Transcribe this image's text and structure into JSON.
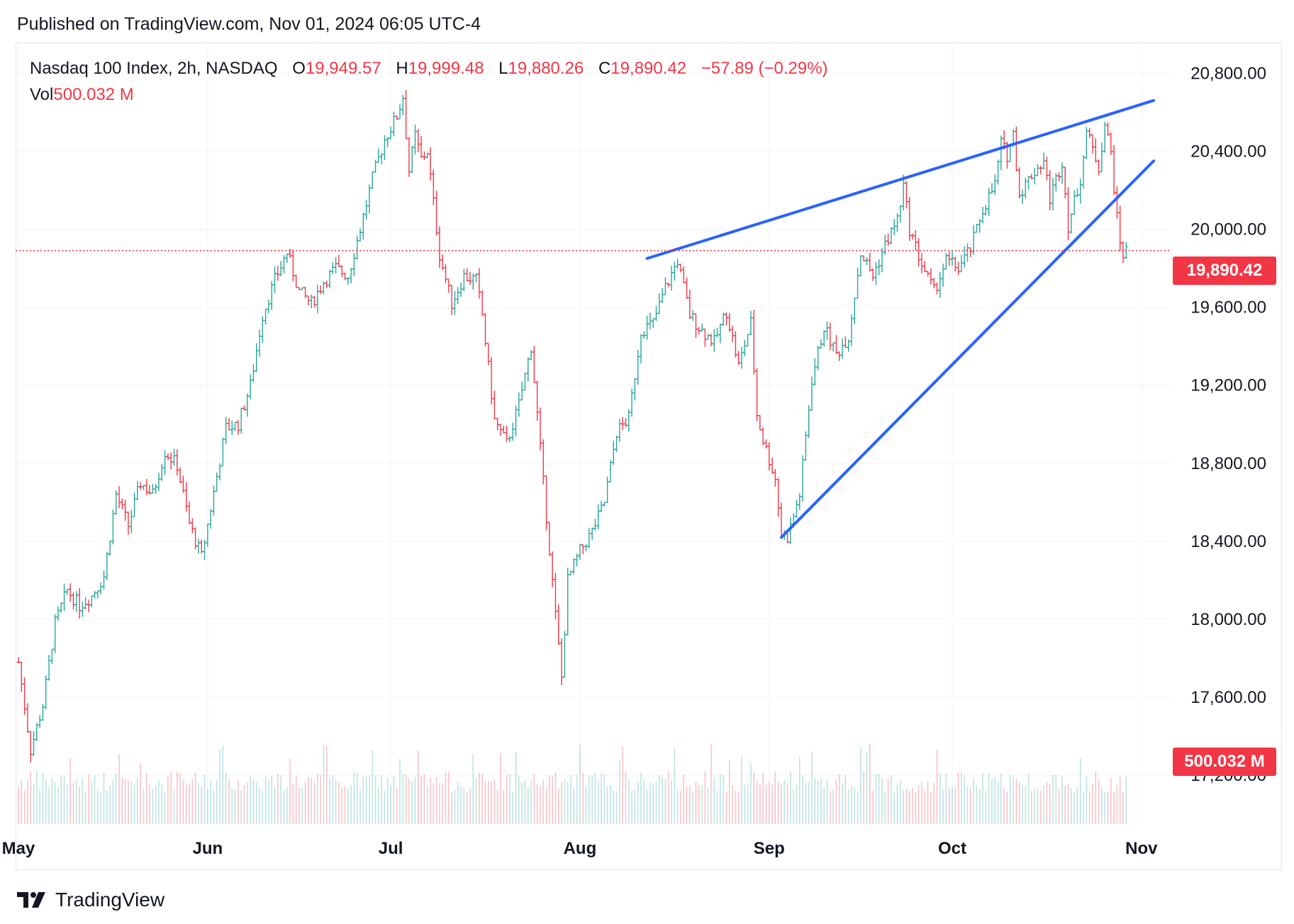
{
  "header": {
    "published": "Published on TradingView.com, Nov 01, 2024 06:05 UTC-4"
  },
  "legend": {
    "symbol": "Nasdaq 100 Index, 2h, NASDAQ",
    "open_label": "O",
    "open_value": "19,949.57",
    "high_label": "H",
    "high_value": "19,999.48",
    "low_label": "L",
    "low_value": "19,880.26",
    "close_label": "C",
    "close_value": "19,890.42",
    "change": "−57.89 (−0.29%)",
    "vol_label": "Vol",
    "vol_value": "500.032 M"
  },
  "price_tag": "19,890.42",
  "vol_tag": "500.032 M",
  "footer": {
    "brand": "TradingView"
  },
  "colors": {
    "up": "#26a69a",
    "down": "#f23645",
    "trendline": "#2962ff",
    "grid": "#f0f3fa"
  },
  "chart_data": {
    "type": "candlestick",
    "title": "Nasdaq 100 Index, 2h, NASDAQ",
    "y_ticks": [
      "20,800.00",
      "20,400.00",
      "20,000.00",
      "19,600.00",
      "19,200.00",
      "18,800.00",
      "18,400.00",
      "18,000.00",
      "17,600.00",
      "17,200.00"
    ],
    "y_tick_values": [
      20800,
      20400,
      20000,
      19600,
      19200,
      18800,
      18400,
      18000,
      17600,
      17200
    ],
    "ylim": [
      16950,
      20950
    ],
    "x_ticks": [
      "May",
      "Jun",
      "Jul",
      "Aug",
      "Sep",
      "Oct",
      "Nov"
    ],
    "x_tick_days": [
      0,
      31,
      61,
      92,
      123,
      153,
      184
    ],
    "xlim_days": [
      0,
      187
    ],
    "last_price": 19890.42,
    "waypoints": [
      [
        0,
        17780
      ],
      [
        2,
        17330
      ],
      [
        4,
        17560
      ],
      [
        6,
        17980
      ],
      [
        8,
        18150
      ],
      [
        10,
        18070
      ],
      [
        12,
        18120
      ],
      [
        14,
        18220
      ],
      [
        16,
        18640
      ],
      [
        18,
        18480
      ],
      [
        20,
        18700
      ],
      [
        22,
        18640
      ],
      [
        24,
        18860
      ],
      [
        26,
        18790
      ],
      [
        28,
        18490
      ],
      [
        30,
        18320
      ],
      [
        32,
        18650
      ],
      [
        34,
        18980
      ],
      [
        36,
        19000
      ],
      [
        38,
        19200
      ],
      [
        40,
        19560
      ],
      [
        42,
        19740
      ],
      [
        44,
        19880
      ],
      [
        46,
        19680
      ],
      [
        48,
        19620
      ],
      [
        50,
        19730
      ],
      [
        52,
        19800
      ],
      [
        54,
        19760
      ],
      [
        56,
        20000
      ],
      [
        58,
        20260
      ],
      [
        60,
        20460
      ],
      [
        62,
        20580
      ],
      [
        63,
        20680
      ],
      [
        64,
        20300
      ],
      [
        65,
        20480
      ],
      [
        66,
        20360
      ],
      [
        67,
        20400
      ],
      [
        69,
        19870
      ],
      [
        71,
        19620
      ],
      [
        73,
        19760
      ],
      [
        75,
        19740
      ],
      [
        76,
        19560
      ],
      [
        78,
        19020
      ],
      [
        80,
        18900
      ],
      [
        82,
        19100
      ],
      [
        84,
        19400
      ],
      [
        86,
        18700
      ],
      [
        88,
        18020
      ],
      [
        89,
        17700
      ],
      [
        90,
        18200
      ],
      [
        92,
        18350
      ],
      [
        94,
        18450
      ],
      [
        96,
        18600
      ],
      [
        98,
        18960
      ],
      [
        100,
        19030
      ],
      [
        102,
        19480
      ],
      [
        104,
        19520
      ],
      [
        106,
        19700
      ],
      [
        108,
        19840
      ],
      [
        110,
        19560
      ],
      [
        112,
        19480
      ],
      [
        114,
        19420
      ],
      [
        116,
        19580
      ],
      [
        118,
        19300
      ],
      [
        120,
        19520
      ],
      [
        121,
        19050
      ],
      [
        122,
        18920
      ],
      [
        124,
        18720
      ],
      [
        125,
        18440
      ],
      [
        126,
        18420
      ],
      [
        128,
        18640
      ],
      [
        130,
        19230
      ],
      [
        132,
        19500
      ],
      [
        134,
        19360
      ],
      [
        136,
        19450
      ],
      [
        138,
        19880
      ],
      [
        140,
        19760
      ],
      [
        142,
        19920
      ],
      [
        144,
        20050
      ],
      [
        145,
        20220
      ],
      [
        146,
        20000
      ],
      [
        148,
        19820
      ],
      [
        150,
        19680
      ],
      [
        152,
        19840
      ],
      [
        154,
        19800
      ],
      [
        156,
        19900
      ],
      [
        158,
        20100
      ],
      [
        160,
        20230
      ],
      [
        161,
        20440
      ],
      [
        162,
        20380
      ],
      [
        163,
        20490
      ],
      [
        164,
        20180
      ],
      [
        166,
        20280
      ],
      [
        168,
        20350
      ],
      [
        169,
        20160
      ],
      [
        171,
        20350
      ],
      [
        172,
        20020
      ],
      [
        174,
        20260
      ],
      [
        175,
        20500
      ],
      [
        177,
        20320
      ],
      [
        178,
        20540
      ],
      [
        179,
        20390
      ],
      [
        180,
        20050
      ],
      [
        180.5,
        19940
      ],
      [
        181,
        19870
      ],
      [
        181.5,
        19890
      ]
    ],
    "trendlines": [
      {
        "name": "upper",
        "from": [
          103,
          19850
        ],
        "to": [
          186,
          20660
        ]
      },
      {
        "name": "lower",
        "from": [
          125,
          18420
        ],
        "to": [
          186,
          20350
        ]
      }
    ],
    "volume_last": "500.032 M"
  }
}
